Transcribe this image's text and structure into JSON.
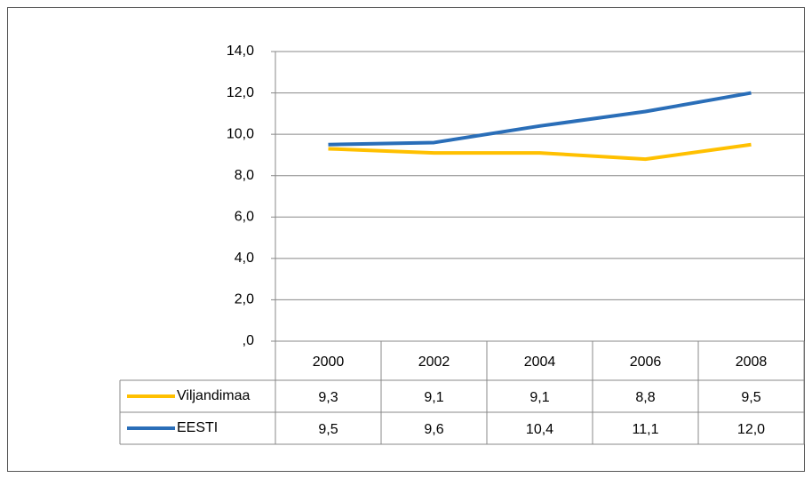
{
  "chart_data": {
    "type": "line",
    "categories": [
      "2000",
      "2002",
      "2004",
      "2006",
      "2008"
    ],
    "series": [
      {
        "name": "Viljandimaa",
        "color": "#FFC000",
        "values": [
          9.3,
          9.1,
          9.1,
          8.8,
          9.5
        ],
        "value_labels": [
          "9,3",
          "9,1",
          "9,1",
          "8,8",
          "9,5"
        ]
      },
      {
        "name": "EESTI",
        "color": "#2A6EB8",
        "values": [
          9.5,
          9.6,
          10.4,
          11.1,
          12.0
        ],
        "value_labels": [
          "9,5",
          "9,6",
          "10,4",
          "11,1",
          "12,0"
        ]
      }
    ],
    "ylim": [
      0,
      14
    ],
    "yticks": [
      {
        "value": 0,
        "label": ",0"
      },
      {
        "value": 2,
        "label": "2,0"
      },
      {
        "value": 4,
        "label": "4,0"
      },
      {
        "value": 6,
        "label": "6,0"
      },
      {
        "value": 8,
        "label": "8,0"
      },
      {
        "value": 10,
        "label": "10,0"
      },
      {
        "value": 12,
        "label": "12,0"
      },
      {
        "value": 14,
        "label": "14,0"
      }
    ],
    "grid": true,
    "data_table": true
  }
}
